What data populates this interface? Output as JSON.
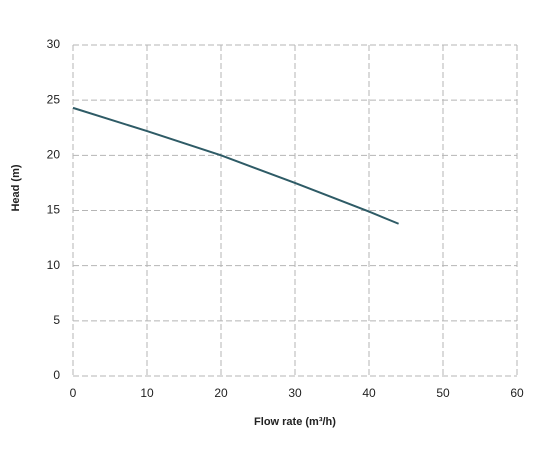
{
  "chart_data": {
    "type": "line",
    "x_label": "Flow rate (m³/h)",
    "y_label": "Head (m)",
    "x": [
      0,
      10,
      20,
      30,
      40,
      44
    ],
    "series": [
      {
        "color": "#2e5b66",
        "values": [
          24.3,
          22.2,
          20.0,
          17.5,
          14.9,
          13.8
        ]
      }
    ],
    "xlim": [
      0,
      60
    ],
    "xticks": [
      0,
      10,
      20,
      30,
      40,
      50,
      60
    ],
    "ylim": [
      0,
      30
    ],
    "yticks": [
      0,
      5,
      10,
      15,
      20,
      25,
      30
    ],
    "grid": true
  }
}
